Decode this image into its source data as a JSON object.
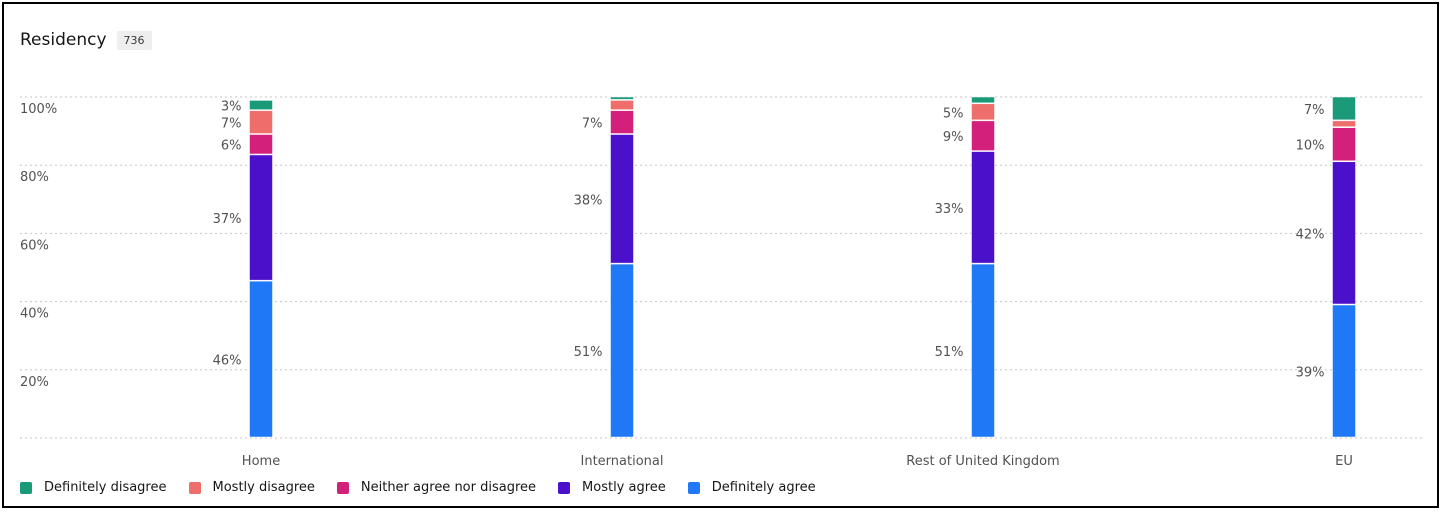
{
  "header": {
    "title": "Residency",
    "count": "736"
  },
  "chart_data": {
    "type": "bar",
    "stacked": true,
    "categories": [
      "Home",
      "International",
      "Rest of United Kingdom",
      "EU"
    ],
    "yticks": [
      "100%",
      "80%",
      "60%",
      "40%",
      "20%"
    ],
    "ylim": [
      0,
      100
    ],
    "grid": true,
    "legend_position": "bottom-left",
    "series": [
      {
        "name": "Definitely agree",
        "color": "#1f78f5",
        "values": [
          46,
          51,
          51,
          39
        ],
        "labels": [
          "46%",
          "51%",
          "51%",
          "39%"
        ]
      },
      {
        "name": "Mostly agree",
        "color": "#4b10c9",
        "values": [
          37,
          38,
          33,
          42
        ],
        "labels": [
          "37%",
          "38%",
          "33%",
          "42%"
        ]
      },
      {
        "name": "Neither agree nor disagree",
        "color": "#d3207a",
        "values": [
          6,
          7,
          9,
          10
        ],
        "labels": [
          "6%",
          "7%",
          "9%",
          "10%"
        ]
      },
      {
        "name": "Mostly disagree",
        "color": "#ee6e6b",
        "values": [
          7,
          3,
          5,
          2
        ],
        "labels": [
          "7%",
          "",
          "5%",
          ""
        ]
      },
      {
        "name": "Definitely disagree",
        "color": "#1a9a78",
        "values": [
          3,
          1,
          2,
          7
        ],
        "labels": [
          "3%",
          "",
          "",
          "7%"
        ]
      }
    ]
  }
}
